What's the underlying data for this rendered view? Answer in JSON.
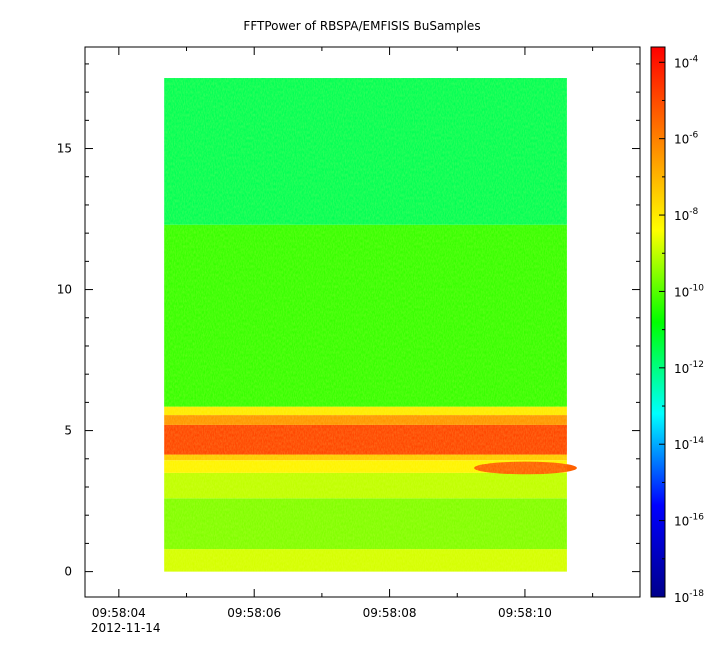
{
  "chart_data": {
    "type": "heatmap",
    "title": "FFTPower of RBSPA/EMFISIS  BuSamples",
    "xlabel": "",
    "ylabel": "",
    "x_tick_labels": [
      "09:58:04",
      "09:58:06",
      "09:58:08",
      "09:58:10"
    ],
    "x_tick_values_sec": [
      4,
      6,
      8,
      10
    ],
    "x_date_label": "2012-11-14",
    "x_minor_tick_values_sec": [
      5,
      7,
      9,
      11
    ],
    "xlim_sec": [
      3.5,
      11.7
    ],
    "data_x_range_sec": [
      4.67,
      10.62
    ],
    "y_tick_labels": [
      "0",
      "5",
      "10",
      "15"
    ],
    "y_tick_values": [
      0,
      5,
      10,
      15
    ],
    "ylim": [
      -0.9,
      18.6
    ],
    "data_y_range": [
      0,
      17.5
    ],
    "colorbar": {
      "scale": "log",
      "range_exponent": [
        -18,
        -3.6
      ],
      "tick_base": "10",
      "tick_exponents": [
        "-4",
        "-6",
        "-8",
        "-10",
        "-12",
        "-14",
        "-16",
        "-18"
      ],
      "tick_exponent_values": [
        -4,
        -6,
        -8,
        -10,
        -12,
        -14,
        -16,
        -18
      ],
      "colormap": [
        "#00008b",
        "#0000ff",
        "#00ffff",
        "#00ff00",
        "#ffff00",
        "#ff8000",
        "#ff0000"
      ]
    },
    "bands": [
      {
        "y_from": 0.0,
        "y_to": 0.8,
        "log_power": -8.8
      },
      {
        "y_from": 0.8,
        "y_to": 2.6,
        "log_power": -9.6
      },
      {
        "y_from": 2.6,
        "y_to": 3.5,
        "log_power": -9.0
      },
      {
        "y_from": 3.5,
        "y_to": 3.95,
        "log_power": -8.2
      },
      {
        "y_from": 3.95,
        "y_to": 4.15,
        "log_power": -7.4
      },
      {
        "y_from": 4.15,
        "y_to": 5.2,
        "log_power": -4.9
      },
      {
        "y_from": 5.2,
        "y_to": 5.55,
        "log_power": -6.4
      },
      {
        "y_from": 5.55,
        "y_to": 5.85,
        "log_power": -8.0
      },
      {
        "y_from": 5.85,
        "y_to": 12.3,
        "log_power": -10.3
      },
      {
        "y_from": 12.3,
        "y_to": 17.5,
        "log_power": -11.6
      }
    ],
    "features": [
      {
        "x_from_sec": 9.1,
        "x_to_sec": 10.62,
        "y_from": 3.45,
        "y_to": 3.9,
        "log_power": -5.4
      }
    ]
  }
}
